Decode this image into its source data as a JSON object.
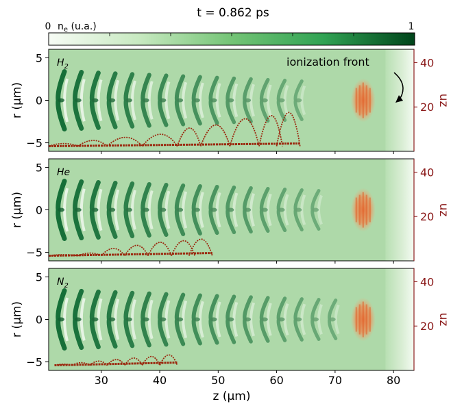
{
  "title": "t = 0.862 ps",
  "colorbar": {
    "label": "n",
    "label_sub": "e",
    "label_unit": " (u.a.)",
    "min_label": "0",
    "max_label": "1",
    "min": 0,
    "max": 1,
    "colors": {
      "low": "#f4fbf1",
      "mid": "#74c476",
      "high": "#0b5a2b"
    }
  },
  "chart_data": {
    "type": "heatmap",
    "shared_xlabel": "z (µm)",
    "xlim": [
      21,
      83.5
    ],
    "x_ticks": [
      30,
      40,
      50,
      60,
      70,
      80
    ],
    "x_tick_labels": [
      "30",
      "40",
      "50",
      "60",
      "70",
      "80"
    ],
    "ylabel": "r (µm)",
    "ylim": [
      -6,
      6
    ],
    "y_ticks": [
      -5,
      0,
      5
    ],
    "y_tick_labels": [
      "−5",
      "0",
      "5"
    ],
    "right_ylabel": "uz",
    "right_ylim": [
      0,
      46
    ],
    "right_y_ticks": [
      20,
      40
    ],
    "right_y_tick_labels": [
      "20",
      "40"
    ],
    "background_density": 0.42,
    "ionization_front_z": 80.5,
    "panels": [
      {
        "gas_label": "H",
        "gas_sub": "2",
        "wake_start_z": 23,
        "wake_end_z": 66,
        "wake_period_um": 2.9,
        "laser_pulse_z": 74.8,
        "trapped_electron_segments": [
          {
            "z_start": 21,
            "z_end": 26,
            "uz_peak": 4
          },
          {
            "z_start": 26,
            "z_end": 31,
            "uz_peak": 6
          },
          {
            "z_start": 31,
            "z_end": 37,
            "uz_peak": 8
          },
          {
            "z_start": 37,
            "z_end": 43,
            "uz_peak": 10
          },
          {
            "z_start": 43,
            "z_end": 47,
            "uz_peak": 14
          },
          {
            "z_start": 47,
            "z_end": 52,
            "uz_peak": 16
          },
          {
            "z_start": 52,
            "z_end": 57,
            "uz_peak": 20
          },
          {
            "z_start": 57,
            "z_end": 61,
            "uz_peak": 22
          },
          {
            "z_start": 60,
            "z_end": 64,
            "uz_peak": 24
          }
        ],
        "annotation": "ionization front"
      },
      {
        "gas_label": "He",
        "gas_sub": "",
        "wake_start_z": 23,
        "wake_end_z": 69,
        "wake_period_um": 2.9,
        "laser_pulse_z": 74.8,
        "trapped_electron_segments": [
          {
            "z_start": 21,
            "z_end": 26,
            "uz_peak": 3
          },
          {
            "z_start": 26,
            "z_end": 30,
            "uz_peak": 4
          },
          {
            "z_start": 30,
            "z_end": 34,
            "uz_peak": 7
          },
          {
            "z_start": 34,
            "z_end": 38,
            "uz_peak": 9
          },
          {
            "z_start": 38,
            "z_end": 42,
            "uz_peak": 11
          },
          {
            "z_start": 42,
            "z_end": 46,
            "uz_peak": 12
          },
          {
            "z_start": 45,
            "z_end": 49,
            "uz_peak": 13
          }
        ]
      },
      {
        "gas_label": "N",
        "gas_sub": "2",
        "wake_start_z": 23,
        "wake_end_z": 70,
        "wake_period_um": 2.9,
        "laser_pulse_z": 74.8,
        "trapped_electron_segments": [
          {
            "z_start": 22,
            "z_end": 25,
            "uz_peak": 3
          },
          {
            "z_start": 25,
            "z_end": 28,
            "uz_peak": 4
          },
          {
            "z_start": 28,
            "z_end": 31,
            "uz_peak": 5
          },
          {
            "z_start": 31,
            "z_end": 34,
            "uz_peak": 6
          },
          {
            "z_start": 34,
            "z_end": 37,
            "uz_peak": 7
          },
          {
            "z_start": 37,
            "z_end": 40,
            "uz_peak": 8
          },
          {
            "z_start": 40,
            "z_end": 43,
            "uz_peak": 9
          }
        ]
      }
    ]
  }
}
